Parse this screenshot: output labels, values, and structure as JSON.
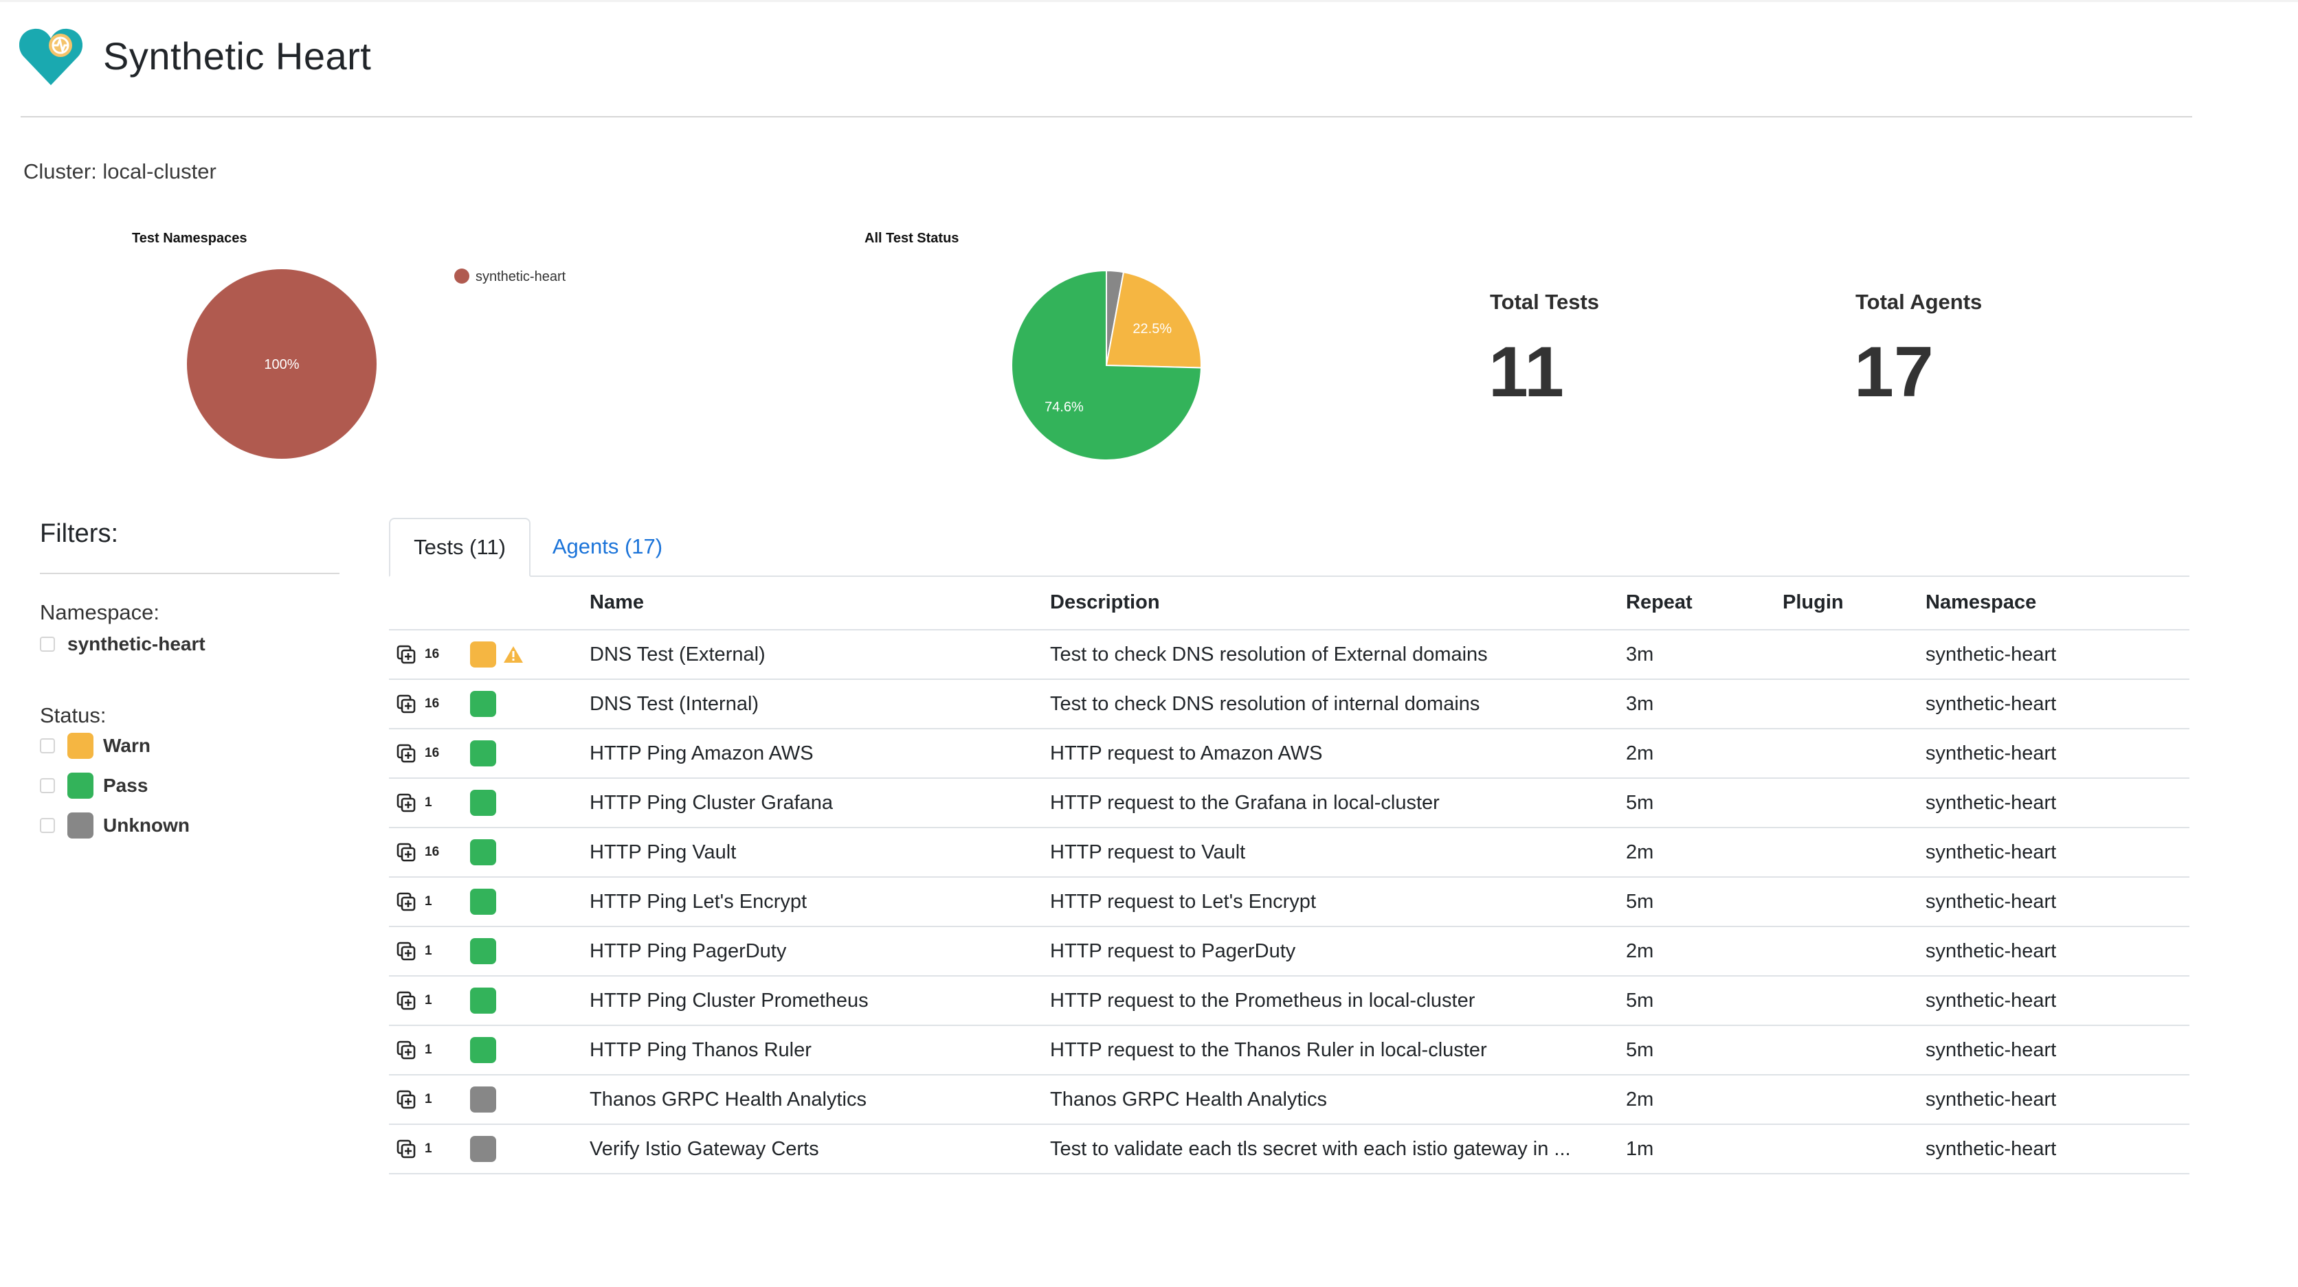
{
  "app": {
    "title": "Synthetic Heart",
    "cluster_label": "Cluster: local-cluster"
  },
  "colors": {
    "teal": "#1aa9b0",
    "warn": "#f5b642",
    "pass": "#33b35a",
    "unknown": "#878787",
    "namespace_slice": "#b05a4f",
    "tab_link": "#1a73d9"
  },
  "icons": [
    "heart-logo-icon",
    "copy-icon",
    "warning-icon"
  ],
  "chart_data": [
    {
      "type": "pie",
      "title": "Test Namespaces",
      "labels": [
        "synthetic-heart"
      ],
      "values": [
        100
      ],
      "value_labels": [
        "100%"
      ],
      "legend": {
        "placement": "top-right",
        "entries": [
          "synthetic-heart"
        ]
      }
    },
    {
      "type": "pie",
      "title": "All Test Status",
      "labels": [
        "Unknown",
        "Warn",
        "Pass"
      ],
      "values": [
        2.9,
        22.5,
        74.6
      ],
      "value_labels": [
        "",
        "22.5%",
        "74.6%"
      ]
    }
  ],
  "stats": {
    "total_tests": {
      "label": "Total Tests",
      "value": "11"
    },
    "total_agents": {
      "label": "Total Agents",
      "value": "17"
    }
  },
  "filters": {
    "title": "Filters:",
    "namespace_label": "Namespace:",
    "namespaces": [
      "synthetic-heart"
    ],
    "status_label": "Status:",
    "statuses": [
      {
        "label": "Warn",
        "color": "#f5b642"
      },
      {
        "label": "Pass",
        "color": "#33b35a"
      },
      {
        "label": "Unknown",
        "color": "#878787"
      }
    ]
  },
  "tabs": [
    {
      "label": "Tests (11)",
      "active": true
    },
    {
      "label": "Agents (17)",
      "active": false
    }
  ],
  "table": {
    "columns": [
      "",
      "",
      "Name",
      "Description",
      "Repeat",
      "Plugin",
      "Namespace"
    ],
    "rows": [
      {
        "count": "16",
        "status": "warn",
        "name": "DNS Test (External)",
        "description": "Test to check DNS resolution of External domains",
        "repeat": "3m",
        "plugin": "",
        "namespace": "synthetic-heart"
      },
      {
        "count": "16",
        "status": "pass",
        "name": "DNS Test (Internal)",
        "description": "Test to check DNS resolution of internal domains",
        "repeat": "3m",
        "plugin": "",
        "namespace": "synthetic-heart"
      },
      {
        "count": "16",
        "status": "pass",
        "name": "HTTP Ping Amazon AWS",
        "description": "HTTP request to Amazon AWS",
        "repeat": "2m",
        "plugin": "",
        "namespace": "synthetic-heart"
      },
      {
        "count": "1",
        "status": "pass",
        "name": "HTTP Ping Cluster Grafana",
        "description": "HTTP request to the Grafana in local-cluster",
        "repeat": "5m",
        "plugin": "",
        "namespace": "synthetic-heart"
      },
      {
        "count": "16",
        "status": "pass",
        "name": "HTTP Ping Vault",
        "description": "HTTP request to Vault",
        "repeat": "2m",
        "plugin": "",
        "namespace": "synthetic-heart"
      },
      {
        "count": "1",
        "status": "pass",
        "name": "HTTP Ping Let's Encrypt",
        "description": "HTTP request to Let's Encrypt",
        "repeat": "5m",
        "plugin": "",
        "namespace": "synthetic-heart"
      },
      {
        "count": "1",
        "status": "pass",
        "name": "HTTP Ping PagerDuty",
        "description": "HTTP request to PagerDuty",
        "repeat": "2m",
        "plugin": "",
        "namespace": "synthetic-heart"
      },
      {
        "count": "1",
        "status": "pass",
        "name": "HTTP Ping Cluster Prometheus",
        "description": "HTTP request to the Prometheus in local-cluster",
        "repeat": "5m",
        "plugin": "",
        "namespace": "synthetic-heart"
      },
      {
        "count": "1",
        "status": "pass",
        "name": "HTTP Ping Thanos Ruler",
        "description": "HTTP request to the Thanos Ruler in local-cluster",
        "repeat": "5m",
        "plugin": "",
        "namespace": "synthetic-heart"
      },
      {
        "count": "1",
        "status": "unknown",
        "name": "Thanos GRPC Health Analytics",
        "description": "Thanos GRPC Health Analytics",
        "repeat": "2m",
        "plugin": "",
        "namespace": "synthetic-heart"
      },
      {
        "count": "1",
        "status": "unknown",
        "name": "Verify Istio Gateway Certs",
        "description": "Test to validate each tls secret with each istio gateway in ...",
        "repeat": "1m",
        "plugin": "",
        "namespace": "synthetic-heart"
      }
    ]
  }
}
